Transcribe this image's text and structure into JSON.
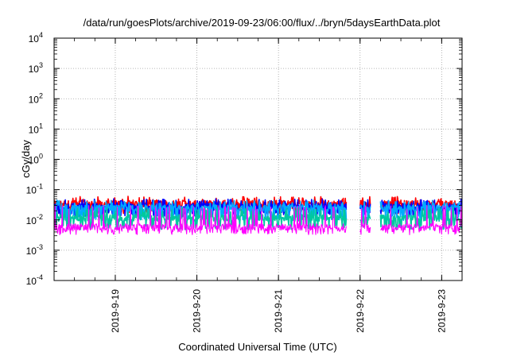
{
  "chart_data": {
    "type": "line",
    "title": "/data/run/goesPlots/archive/2019-09-23/06:00/flux/../bryn/5daysEarthData.plot",
    "xlabel": "Coordinated Universal Time (UTC)",
    "ylabel": "cGy/day",
    "yscale": "log",
    "grid": true,
    "ylim": [
      0.0001,
      10000
    ],
    "xlim": [
      "2019-09-18 06:00",
      "2019-09-23 06:00"
    ],
    "y_ticks": [
      {
        "value": 0.0001,
        "base": "10",
        "exp": "-4"
      },
      {
        "value": 0.001,
        "base": "10",
        "exp": "-3"
      },
      {
        "value": 0.01,
        "base": "10",
        "exp": "-2"
      },
      {
        "value": 0.1,
        "base": "10",
        "exp": "-1"
      },
      {
        "value": 1,
        "base": "10",
        "exp": "0"
      },
      {
        "value": 10,
        "base": "10",
        "exp": "1"
      },
      {
        "value": 100,
        "base": "10",
        "exp": "2"
      },
      {
        "value": 1000,
        "base": "10",
        "exp": "3"
      },
      {
        "value": 10000,
        "base": "10",
        "exp": "4"
      }
    ],
    "x_ticks": [
      "2019-9-19",
      "2019-9-20",
      "2019-9-21",
      "2019-9-22",
      "2019-9-23"
    ],
    "data_gaps": [
      [
        "2019-09-21 20:00",
        "2019-09-22 00:00"
      ],
      [
        "2019-09-22 03:00",
        "2019-09-22 06:00"
      ]
    ],
    "series": [
      {
        "color": "#ff0000",
        "y_typical": 0.035,
        "y_spike_max": 0.06,
        "y_dip_min": 0.02
      },
      {
        "color": "#0000ff",
        "y_typical": 0.028,
        "y_spike_max": 0.05,
        "y_dip_min": 0.015
      },
      {
        "color": "#00aaff",
        "y_typical": 0.025,
        "y_spike_max": 0.045,
        "y_dip_min": 0.012
      },
      {
        "color": "#00c8a0",
        "y_typical": 0.012,
        "y_spike_max": 0.025,
        "y_dip_min": 0.006
      },
      {
        "color": "#ff00ff",
        "y_typical": 0.006,
        "y_spike_max": 0.03,
        "y_dip_min": 0.004
      }
    ]
  }
}
